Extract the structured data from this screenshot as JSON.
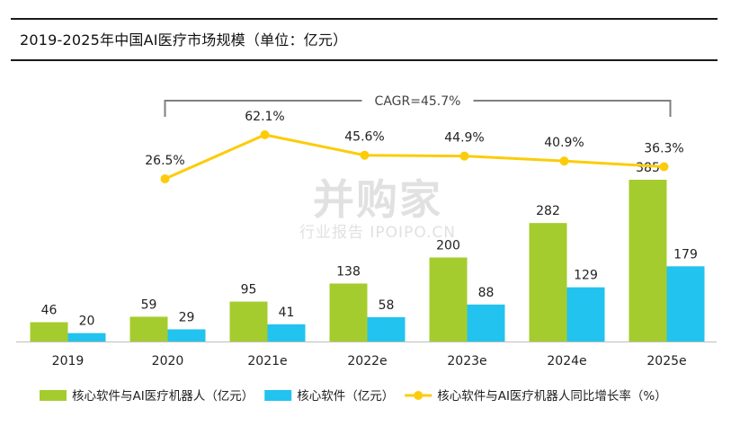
{
  "title": "2019-2025年中国AI医疗市场规模（单位：亿元）",
  "watermark": {
    "brand": "并购家",
    "sub": "行业报告 IPOIPO.CN"
  },
  "chart_data": {
    "type": "bar",
    "categories": [
      "2019",
      "2020",
      "2021e",
      "2022e",
      "2023e",
      "2024e",
      "2025e"
    ],
    "series": [
      {
        "name": "核心软件与AI医疗机器人（亿元）",
        "type": "bar",
        "color": "#a5cc2e",
        "values": [
          46,
          59,
          95,
          138,
          200,
          282,
          385
        ]
      },
      {
        "name": "核心软件（亿元）",
        "type": "bar",
        "color": "#22c3ee",
        "values": [
          20,
          29,
          41,
          58,
          88,
          129,
          179
        ]
      },
      {
        "name": "核心软件与AI医疗机器人同比增长率（%）",
        "type": "line",
        "color": "#fccc0a",
        "x": [
          "2020",
          "2021e",
          "2022e",
          "2023e",
          "2024e",
          "2025e"
        ],
        "values": [
          26.5,
          62.1,
          45.6,
          44.9,
          40.9,
          36.3
        ],
        "labels": [
          "26.5%",
          "62.1%",
          "45.6%",
          "44.9%",
          "40.9%",
          "36.3%"
        ]
      }
    ],
    "annotation": {
      "text": "CAGR=45.7%",
      "from": "2020",
      "to": "2025e"
    },
    "legend": "bottom",
    "grid": false
  }
}
